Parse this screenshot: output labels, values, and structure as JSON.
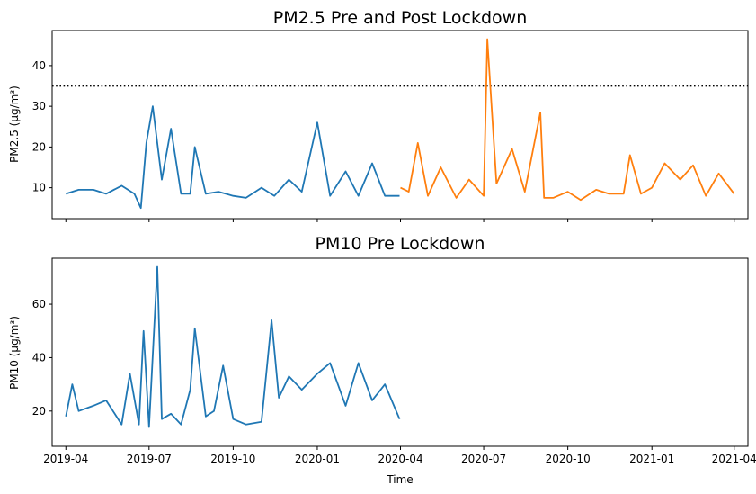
{
  "chart_data": [
    {
      "type": "line",
      "title": "PM2.5 Pre and Post Lockdown",
      "xlabel": "",
      "ylabel": "PM2.5 (µg/m³)",
      "ylim": [
        2.4,
        48.6
      ],
      "y_ticks": [
        10,
        20,
        30,
        40
      ],
      "x_ticks": [
        "2019-04",
        "2019-07",
        "2019-10",
        "2020-01",
        "2020-04",
        "2020-07",
        "2020-10",
        "2021-01",
        "2021-04"
      ],
      "x_tick_labels_shown": false,
      "reference_line": {
        "y": 35,
        "style": "dotted",
        "color": "#000000"
      },
      "series": [
        {
          "color": "#1f77b4",
          "x": [
            "2019-04-01",
            "2019-04-15",
            "2019-05-01",
            "2019-05-15",
            "2019-06-01",
            "2019-06-15",
            "2019-06-22",
            "2019-06-28",
            "2019-07-05",
            "2019-07-15",
            "2019-07-25",
            "2019-08-05",
            "2019-08-15",
            "2019-08-20",
            "2019-09-01",
            "2019-09-15",
            "2019-10-01",
            "2019-10-15",
            "2019-11-01",
            "2019-11-15",
            "2019-12-01",
            "2019-12-15",
            "2020-01-01",
            "2020-01-15",
            "2020-02-01",
            "2020-02-15",
            "2020-03-01",
            "2020-03-15",
            "2020-03-31"
          ],
          "y": [
            8.5,
            9.5,
            9.5,
            8.5,
            10.5,
            8.5,
            5,
            21,
            30,
            12,
            24.5,
            8.5,
            8.5,
            20,
            8.5,
            9,
            8,
            7.5,
            10,
            8,
            12,
            9,
            26,
            8,
            14,
            8,
            16,
            8,
            8
          ]
        },
        {
          "color": "#ff7f0e",
          "x": [
            "2020-04-01",
            "2020-04-10",
            "2020-04-20",
            "2020-05-01",
            "2020-05-15",
            "2020-06-01",
            "2020-06-15",
            "2020-07-01",
            "2020-07-05",
            "2020-07-15",
            "2020-08-01",
            "2020-08-15",
            "2020-09-01",
            "2020-09-05",
            "2020-09-15",
            "2020-10-01",
            "2020-10-15",
            "2020-11-01",
            "2020-11-15",
            "2020-12-01",
            "2020-12-08",
            "2020-12-20",
            "2021-01-01",
            "2021-01-15",
            "2021-02-01",
            "2021-02-15",
            "2021-03-01",
            "2021-03-15",
            "2021-04-01"
          ],
          "y": [
            10,
            9,
            21,
            8,
            15,
            7.5,
            12,
            8,
            46.5,
            11,
            19.5,
            9,
            28.5,
            7.5,
            7.5,
            9,
            7,
            9.5,
            8.5,
            8.5,
            18,
            8.5,
            10,
            16,
            12,
            15.5,
            8,
            13.5,
            8.5
          ]
        }
      ]
    },
    {
      "type": "line",
      "title": "PM10 Pre Lockdown",
      "xlabel": "Time",
      "ylabel": "PM10 (µg/m³)",
      "ylim": [
        6.8,
        77.2
      ],
      "y_ticks": [
        20,
        40,
        60
      ],
      "x_ticks": [
        "2019-04",
        "2019-07",
        "2019-10",
        "2020-01",
        "2020-04",
        "2020-07",
        "2020-10",
        "2021-01",
        "2021-04"
      ],
      "x_tick_labels_shown": true,
      "series": [
        {
          "color": "#1f77b4",
          "x": [
            "2019-04-01",
            "2019-04-08",
            "2019-04-15",
            "2019-05-01",
            "2019-05-15",
            "2019-06-01",
            "2019-06-10",
            "2019-06-20",
            "2019-06-25",
            "2019-07-01",
            "2019-07-10",
            "2019-07-15",
            "2019-07-25",
            "2019-08-05",
            "2019-08-15",
            "2019-08-20",
            "2019-09-01",
            "2019-09-10",
            "2019-09-20",
            "2019-10-01",
            "2019-10-15",
            "2019-11-01",
            "2019-11-12",
            "2019-11-20",
            "2019-12-01",
            "2019-12-15",
            "2020-01-01",
            "2020-01-15",
            "2020-02-01",
            "2020-02-15",
            "2020-03-01",
            "2020-03-15",
            "2020-03-31"
          ],
          "y": [
            18,
            30,
            20,
            22,
            24,
            15,
            34,
            15,
            50,
            14,
            74,
            17,
            19,
            15,
            28,
            51,
            18,
            20,
            37,
            17,
            15,
            16,
            54,
            25,
            33,
            28,
            34,
            38,
            22,
            38,
            24,
            30,
            17
          ]
        }
      ]
    }
  ]
}
